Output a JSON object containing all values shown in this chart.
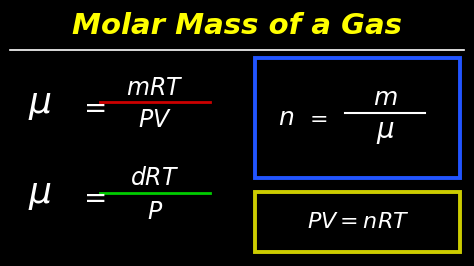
{
  "bg_color": "#000000",
  "title": "Molar Mass of a Gas",
  "title_color": "#ffff00",
  "title_underline_color": "#ffffff",
  "formula_color": "#ffffff",
  "eq1_bar_color": "#cc0000",
  "eq2_bar_color": "#00cc00",
  "box1_color": "#2255ff",
  "box2_color": "#cccc00",
  "figsize": [
    4.74,
    2.66
  ],
  "dpi": 100
}
